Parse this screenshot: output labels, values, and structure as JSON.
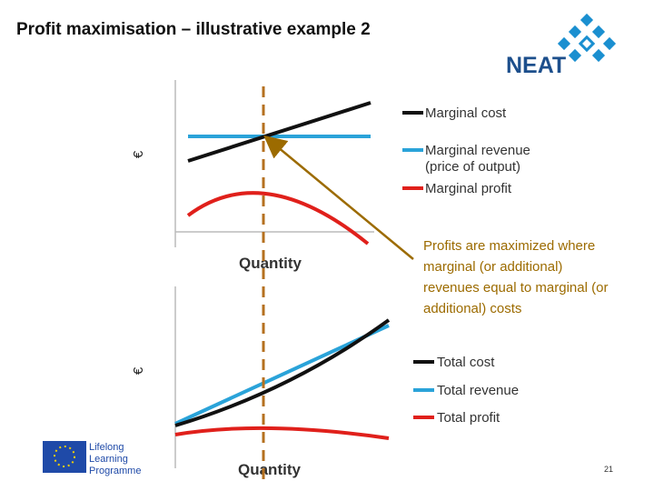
{
  "header": {
    "title": "Profit maximisation – illustrative example 2",
    "logo": "NEAT"
  },
  "top_chart": {
    "y_label": "€",
    "x_label": "Quantity",
    "legend": [
      {
        "lines": [
          "Marginal cost"
        ],
        "color": "#111111"
      },
      {
        "lines": [
          "Marginal revenue",
          "(price of output)"
        ],
        "color": "#2aa3d9"
      },
      {
        "lines": [
          "Marginal profit"
        ],
        "color": "#e0201b"
      }
    ]
  },
  "annotation": {
    "lines": [
      "Profits are maximized where",
      "marginal (or additional)",
      "revenues equal to marginal (or",
      "additional) costs"
    ]
  },
  "bottom_chart": {
    "y_label": "€",
    "x_label": "Quantity",
    "legend": [
      {
        "lines": [
          "Total cost"
        ],
        "color": "#111111"
      },
      {
        "lines": [
          "Total revenue"
        ],
        "color": "#2aa3d9"
      },
      {
        "lines": [
          "Total profit"
        ],
        "color": "#e0201b"
      }
    ]
  },
  "footer": {
    "programme": [
      "Lifelong",
      "Learning",
      "Programme"
    ],
    "page": "21"
  }
}
